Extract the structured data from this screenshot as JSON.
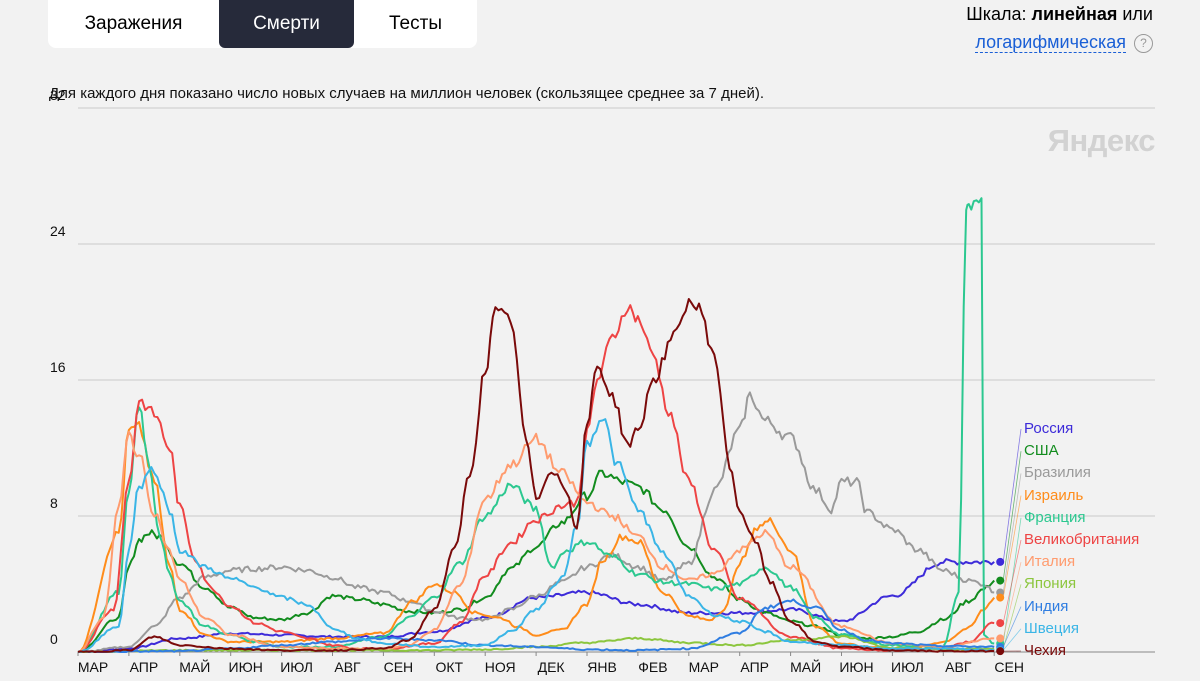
{
  "tabs": [
    {
      "label": "Заражения",
      "active": false
    },
    {
      "label": "Смерти",
      "active": true
    },
    {
      "label": "Тесты",
      "active": false
    }
  ],
  "scale": {
    "prefix": "Шкала:",
    "current": "линейная",
    "or": "или",
    "alt": "логарифмическая",
    "help": "?"
  },
  "note": "Для каждого дня показано число новых случаев на миллион человек (скользящее среднее за 7 дней).",
  "watermark": "Яндекс",
  "chart_data": {
    "type": "line",
    "y_ticks": [
      0,
      8,
      16,
      24,
      32
    ],
    "ylim": [
      0,
      32
    ],
    "x_ticks": [
      "МАР",
      "АПР",
      "МАЙ",
      "ИЮН",
      "ИЮЛ",
      "АВГ",
      "СЕН",
      "ОКТ",
      "НОЯ",
      "ДЕК",
      "ЯНВ",
      "ФЕВ",
      "МАР",
      "АПР",
      "МАЙ",
      "ИЮН",
      "ИЮЛ",
      "АВГ",
      "СЕН"
    ],
    "grid": true,
    "legend_position": "right",
    "series": [
      {
        "name": "Россия",
        "color": "#3d2bd9",
        "x": [
          0,
          1,
          2,
          3,
          4,
          5,
          6,
          7,
          8,
          9,
          10,
          11,
          12,
          13,
          14,
          15,
          16,
          17,
          18
        ],
        "values": [
          0,
          0.2,
          0.8,
          1.1,
          1.0,
          0.9,
          0.9,
          1.2,
          2.0,
          3.2,
          3.5,
          2.8,
          2.3,
          2.3,
          2.5,
          1.8,
          3.3,
          5.3,
          5.3
        ]
      },
      {
        "name": "США",
        "color": "#128c1e",
        "x": [
          0,
          0.8,
          1.0,
          1.2,
          1.4,
          1.6,
          2,
          2.5,
          3,
          3.5,
          4,
          4.5,
          5,
          5.5,
          6,
          6.5,
          7,
          7.5,
          8,
          8.5,
          9,
          9.5,
          10,
          10.3,
          10.7,
          11,
          11.5,
          12,
          12.5,
          13,
          13.5,
          14,
          14.5,
          15,
          15.5,
          16,
          16.5,
          17,
          17.5,
          17.8,
          18
        ],
        "values": [
          0,
          2,
          5,
          6.6,
          7,
          6.8,
          5.2,
          3.8,
          2.6,
          2.0,
          1.9,
          2.3,
          3.3,
          3.1,
          2.8,
          2.4,
          2.3,
          2.5,
          3.2,
          4.9,
          6.2,
          7.6,
          9.2,
          10.5,
          10.0,
          9.7,
          8.4,
          6.2,
          4.4,
          3.1,
          2.3,
          1.8,
          1.5,
          1.0,
          0.8,
          0.9,
          1.2,
          1.9,
          3.0,
          3.7,
          4.2
        ]
      },
      {
        "name": "Бразилия",
        "color": "#9a9a9a",
        "x": [
          0,
          1,
          1.5,
          2,
          2.5,
          3,
          3.5,
          4,
          4.5,
          5,
          5.5,
          6,
          6.5,
          7,
          7.5,
          8,
          8.5,
          9,
          9.5,
          10,
          10.5,
          11,
          11.5,
          12,
          12.5,
          13,
          13.2,
          13.5,
          14,
          14.5,
          14.8,
          15,
          15.3,
          15.5,
          16,
          16.5,
          17,
          17.5,
          17.8,
          18
        ],
        "values": [
          0,
          0.3,
          1.5,
          3.2,
          4.4,
          4.8,
          4.9,
          5.0,
          4.8,
          4.4,
          3.8,
          3.5,
          3.0,
          2.4,
          2.0,
          1.9,
          2.5,
          3.3,
          4.1,
          5.0,
          5.7,
          5.0,
          4.2,
          5.2,
          9.5,
          13.0,
          15.1,
          13.6,
          12.6,
          9.5,
          8.4,
          10.0,
          10.0,
          8.2,
          7.2,
          6.0,
          4.8,
          4.2,
          4.0,
          3.5
        ]
      },
      {
        "name": "Израиль",
        "color": "#ff8c1a",
        "x": [
          0,
          0.8,
          1.0,
          1.2,
          1.5,
          1.8,
          2,
          2.5,
          3,
          4,
          5,
          6,
          6.6,
          7,
          7.4,
          7.8,
          8.3,
          8.7,
          9,
          9.3,
          9.5,
          10,
          10.3,
          10.7,
          11,
          11.5,
          12,
          12.4,
          12.7,
          13,
          13.4,
          13.6,
          14,
          14.5,
          15,
          15.5,
          16,
          16.5,
          17,
          17.5,
          17.8,
          18
        ],
        "values": [
          0,
          7,
          13,
          13.2,
          10,
          5,
          2.5,
          1.0,
          0.6,
          0.6,
          0.8,
          1.1,
          3.0,
          4.0,
          3.5,
          2.3,
          2.0,
          1.4,
          1.0,
          1.2,
          1.3,
          2.8,
          5.4,
          6.8,
          6.5,
          3.5,
          2.1,
          1.9,
          2.5,
          5.3,
          7.5,
          7.7,
          6.0,
          1.5,
          0.5,
          0.3,
          0.2,
          0.3,
          0.6,
          1.4,
          2.5,
          3.2
        ]
      },
      {
        "name": "Франция",
        "color": "#2cc890",
        "x": [
          0,
          0.8,
          1.0,
          1.2,
          1.4,
          1.6,
          1.8,
          2,
          2.5,
          3,
          3.5,
          4,
          5,
          6,
          6.5,
          7,
          7.5,
          8,
          8.5,
          9,
          9.3,
          9.6,
          10,
          10.5,
          11,
          11.5,
          12,
          12.5,
          13,
          13.5,
          14,
          14.5,
          15,
          16,
          17,
          17.3,
          17.45,
          17.5,
          17.75,
          17.8,
          18
        ],
        "values": [
          0,
          3.5,
          9.5,
          14.6,
          11,
          7,
          4.5,
          3.0,
          1.5,
          1.0,
          0.6,
          0.3,
          0.3,
          0.9,
          2.0,
          3.2,
          5.2,
          8.0,
          9.8,
          8.4,
          5.0,
          6.0,
          6.5,
          5.6,
          4.6,
          4.1,
          4.0,
          3.7,
          4.0,
          5.0,
          3.8,
          2.0,
          1.0,
          0.4,
          0.3,
          3.5,
          26,
          26.1,
          26.4,
          1.0,
          0.5
        ]
      },
      {
        "name": "Великобритания",
        "color": "#ee4444",
        "x": [
          0,
          0.7,
          1.0,
          1.2,
          1.5,
          1.8,
          2.0,
          2.3,
          2.6,
          3,
          3.5,
          4,
          4.5,
          5,
          5.5,
          6,
          7,
          7.5,
          8,
          8.5,
          9,
          9.5,
          9.8,
          10,
          10.2,
          10.5,
          10.8,
          11,
          11.3,
          11.6,
          12,
          12.5,
          13,
          14,
          15,
          16,
          17,
          17.5,
          18
        ],
        "values": [
          0,
          2.5,
          10,
          14.8,
          14,
          12,
          8.5,
          5.5,
          3.8,
          2.7,
          1.7,
          1.2,
          0.8,
          0.4,
          0.2,
          0.2,
          0.5,
          1.7,
          4.5,
          6.4,
          7.8,
          8.6,
          8.8,
          12.8,
          16.0,
          18.5,
          20.3,
          19.6,
          17.5,
          14.2,
          10.0,
          6.0,
          3.1,
          0.9,
          0.2,
          0.1,
          0.2,
          0.6,
          1.7
        ]
      },
      {
        "name": "Италия",
        "color": "#ff9b6e",
        "x": [
          0,
          0.5,
          0.8,
          1.0,
          1.2,
          1.5,
          1.8,
          2,
          2.5,
          3,
          4,
          5,
          6,
          6.5,
          7,
          7.5,
          8,
          8.5,
          9,
          9.5,
          10,
          10.5,
          11,
          11.5,
          12,
          12.5,
          13,
          13.5,
          14,
          15,
          16,
          17,
          18
        ],
        "values": [
          0,
          2,
          8.5,
          12.8,
          11.5,
          8.2,
          5.9,
          4.2,
          2.0,
          1.0,
          0.3,
          0.2,
          0.2,
          0.4,
          1.3,
          3.9,
          9.0,
          11.0,
          12.5,
          10.5,
          8.8,
          8.0,
          6.8,
          5.0,
          4.2,
          4.6,
          6.0,
          7.0,
          5.0,
          1.5,
          0.5,
          0.3,
          0.8
        ]
      },
      {
        "name": "Япония",
        "color": "#8cc63e",
        "x": [
          0,
          2,
          4,
          5,
          6,
          7,
          8,
          9,
          10,
          11,
          12,
          13,
          14,
          15,
          16,
          17,
          18
        ],
        "values": [
          0,
          0.1,
          0.1,
          0.1,
          0.1,
          0.1,
          0.15,
          0.3,
          0.55,
          0.8,
          0.55,
          0.4,
          0.7,
          0.9,
          0.25,
          0.15,
          0.2
        ]
      },
      {
        "name": "Индия",
        "color": "#2f7de1",
        "x": [
          0,
          2,
          3,
          4,
          5,
          6,
          7,
          8,
          9,
          10,
          11,
          12,
          13,
          13.5,
          14,
          14.5,
          15,
          15.5,
          16,
          17,
          18
        ],
        "values": [
          0,
          0.05,
          0.2,
          0.4,
          0.6,
          0.8,
          0.7,
          0.4,
          0.3,
          0.15,
          0.1,
          0.2,
          1.1,
          2.6,
          3.0,
          2.6,
          1.3,
          0.7,
          0.5,
          0.35,
          0.3
        ]
      },
      {
        "name": "Швеция",
        "color": "#3ab5e6",
        "x": [
          0,
          0.8,
          1.0,
          1.2,
          1.5,
          1.8,
          2,
          2.5,
          3,
          3.5,
          4,
          4.5,
          5,
          5.5,
          6,
          7,
          8,
          8.5,
          9,
          9.5,
          9.8,
          10,
          10.3,
          10.6,
          11,
          11.5,
          12,
          12.5,
          13,
          13.5,
          14,
          15,
          16,
          17,
          18
        ],
        "values": [
          0,
          1.5,
          6,
          9.8,
          10.8,
          8.3,
          6.0,
          5.0,
          4.3,
          3.8,
          3.2,
          2.8,
          1.4,
          0.8,
          0.5,
          0.3,
          0.4,
          1.2,
          2.5,
          4.3,
          7.3,
          12.3,
          13.8,
          11.0,
          8.4,
          5.8,
          3.3,
          2.2,
          1.8,
          1.2,
          0.6,
          0.4,
          0.2,
          0.2,
          0.1
        ]
      },
      {
        "name": "Чехия",
        "color": "#7a0a0a",
        "x": [
          0,
          1,
          1.5,
          2,
          3,
          4,
          5,
          6,
          6.5,
          7,
          7.4,
          7.7,
          8.0,
          8.2,
          8.5,
          8.8,
          9.0,
          9.3,
          9.6,
          9.8,
          10,
          10.2,
          10.5,
          10.8,
          11,
          11.3,
          11.7,
          12,
          12.2,
          12.5,
          12.8,
          13,
          13.3,
          13.6,
          14,
          14.5,
          15,
          16,
          17,
          18
        ],
        "values": [
          0,
          0.1,
          0.9,
          0.4,
          0.2,
          0.1,
          0.1,
          0.2,
          0.7,
          2.5,
          6.0,
          10.5,
          16.5,
          20.0,
          19.6,
          12.5,
          9.0,
          10.8,
          9.5,
          7.2,
          13.3,
          16.9,
          15.0,
          12.2,
          13.0,
          16.0,
          18.5,
          20.6,
          20.2,
          17.5,
          11.0,
          8.3,
          6.5,
          4.1,
          1.8,
          0.6,
          0.3,
          0.1,
          0.05,
          0.05
        ]
      }
    ]
  }
}
